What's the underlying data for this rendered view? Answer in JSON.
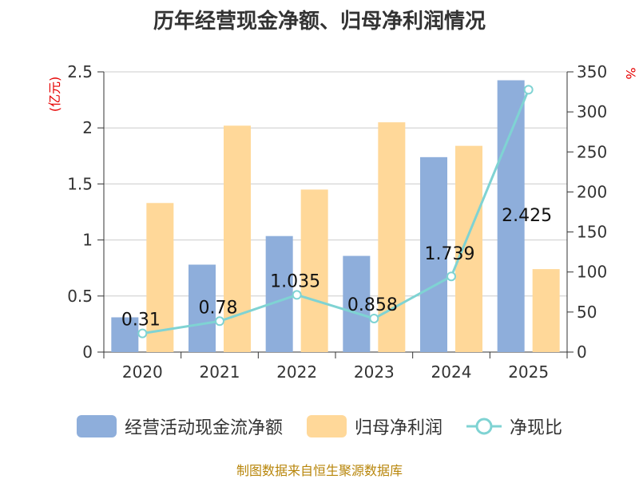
{
  "chart_data": {
    "type": "bar+line",
    "title": "历年经营现金净额、归母净利润情况",
    "categories": [
      "2020",
      "2021",
      "2022",
      "2023",
      "2024",
      "2025"
    ],
    "left_axis": {
      "label": "(亿元)",
      "min": 0,
      "max": 2.5,
      "ticks": [
        "0",
        "0.5",
        "1",
        "1.5",
        "2",
        "2.5"
      ]
    },
    "right_axis": {
      "label": "%",
      "min": 0,
      "max": 350,
      "ticks": [
        "0",
        "50",
        "100",
        "150",
        "200",
        "250",
        "300",
        "350"
      ]
    },
    "series": [
      {
        "name": "经营活动现金流净额",
        "type": "bar",
        "axis": "left",
        "color": "#8eaedb",
        "values": [
          0.31,
          0.78,
          1.035,
          0.858,
          1.739,
          2.425
        ]
      },
      {
        "name": "归母净利润",
        "type": "bar",
        "axis": "left",
        "color": "#ffd899",
        "values": [
          1.33,
          2.02,
          1.45,
          2.05,
          1.84,
          0.74
        ]
      },
      {
        "name": "净现比",
        "type": "line",
        "axis": "right",
        "color": "#7fd3d3",
        "values": [
          23.3,
          38.6,
          71.4,
          41.9,
          94.5,
          327.7
        ]
      }
    ],
    "data_labels": [
      "0.31",
      "0.78",
      "1.035",
      "0.858",
      "1.739",
      "2.425"
    ],
    "grid": true,
    "legend_position": "bottom"
  },
  "source": "制图数据来自恒生聚源数据库"
}
